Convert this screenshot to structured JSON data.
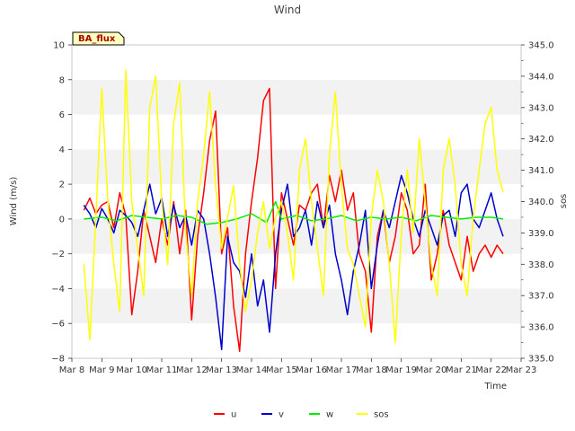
{
  "chart_data": {
    "type": "line",
    "title": "Wind",
    "xlabel": "Time",
    "ylabel": "Wind (m/s)",
    "y2label": "sos",
    "site_label": "BA_flux",
    "xlim": [
      8,
      23
    ],
    "ylim": [
      -8,
      10
    ],
    "y2lim": [
      335.0,
      345.0
    ],
    "x_ticks": [
      8,
      9,
      10,
      11,
      12,
      13,
      14,
      15,
      16,
      17,
      18,
      19,
      20,
      21,
      22,
      23
    ],
    "x_tick_labels": [
      "Mar 8",
      "Mar 9",
      "Mar 10",
      "Mar 11",
      "Mar 12",
      "Mar 13",
      "Mar 14",
      "Mar 15",
      "Mar 16",
      "Mar 17",
      "Mar 18",
      "Mar 19",
      "Mar 20",
      "Mar 21",
      "Mar 22",
      "Mar 23"
    ],
    "y_ticks": [
      -8,
      -6,
      -4,
      -2,
      0,
      2,
      4,
      6,
      8,
      10
    ],
    "y_tick_labels": [
      "−8",
      "−6",
      "−4",
      "−2",
      "0",
      "2",
      "4",
      "6",
      "8",
      "10"
    ],
    "y2_ticks": [
      335,
      336,
      337,
      338,
      339,
      340,
      341,
      342,
      343,
      344,
      345
    ],
    "y2_tick_labels": [
      "335.0",
      "336.0",
      "337.0",
      "338.0",
      "339.0",
      "340.0",
      "341.0",
      "342.0",
      "343.0",
      "344.0",
      "345.0"
    ],
    "legend": {
      "placement": "bottom-center",
      "entries": [
        "u",
        "v",
        "w",
        "sos"
      ]
    },
    "series": [
      {
        "name": "u",
        "axis": "left",
        "color": "#ff0000",
        "x": [
          8.4,
          8.6,
          8.8,
          9.0,
          9.2,
          9.4,
          9.6,
          9.8,
          10.0,
          10.2,
          10.4,
          10.6,
          10.8,
          11.0,
          11.2,
          11.4,
          11.6,
          11.8,
          12.0,
          12.2,
          12.4,
          12.6,
          12.8,
          13.0,
          13.2,
          13.4,
          13.6,
          13.8,
          14.0,
          14.2,
          14.4,
          14.6,
          14.8,
          15.0,
          15.2,
          15.4,
          15.6,
          15.8,
          16.0,
          16.2,
          16.4,
          16.6,
          16.8,
          17.0,
          17.2,
          17.4,
          17.6,
          17.8,
          18.0,
          18.2,
          18.4,
          18.6,
          18.8,
          19.0,
          19.2,
          19.4,
          19.6,
          19.8,
          20.0,
          20.2,
          20.4,
          20.6,
          20.8,
          21.0,
          21.2,
          21.4,
          21.6,
          21.8,
          22.0,
          22.2,
          22.4
        ],
        "values": [
          0.5,
          1.2,
          0.3,
          0.8,
          1.0,
          -0.5,
          1.5,
          0.2,
          -5.5,
          -3.0,
          0.5,
          -1.0,
          -2.5,
          0.0,
          -1.5,
          1.0,
          -2.0,
          0.5,
          -5.8,
          -1.0,
          1.5,
          4.5,
          6.2,
          -2.0,
          -0.5,
          -5.0,
          -7.6,
          -2.0,
          1.0,
          3.5,
          6.8,
          7.5,
          -4.0,
          1.5,
          0.0,
          -1.5,
          0.8,
          0.5,
          1.5,
          2.0,
          -0.5,
          2.5,
          1.0,
          2.8,
          0.5,
          1.5,
          -2.0,
          -3.0,
          -6.5,
          -1.0,
          0.5,
          -2.5,
          -1.0,
          1.5,
          0.5,
          -2.0,
          -1.5,
          2.0,
          -3.5,
          -2.0,
          0.5,
          -1.5,
          -2.5,
          -3.5,
          -1.0,
          -3.0,
          -2.0,
          -1.5,
          -2.2,
          -1.5,
          -2.0
        ]
      },
      {
        "name": "v",
        "axis": "left",
        "color": "#0000cc",
        "x": [
          8.4,
          8.6,
          8.8,
          9.0,
          9.2,
          9.4,
          9.6,
          9.8,
          10.0,
          10.2,
          10.4,
          10.6,
          10.8,
          11.0,
          11.2,
          11.4,
          11.6,
          11.8,
          12.0,
          12.2,
          12.4,
          12.6,
          12.8,
          13.0,
          13.2,
          13.4,
          13.6,
          13.8,
          14.0,
          14.2,
          14.4,
          14.6,
          14.8,
          15.0,
          15.2,
          15.4,
          15.6,
          15.8,
          16.0,
          16.2,
          16.4,
          16.6,
          16.8,
          17.0,
          17.2,
          17.4,
          17.6,
          17.8,
          18.0,
          18.2,
          18.4,
          18.6,
          18.8,
          19.0,
          19.2,
          19.4,
          19.6,
          19.8,
          20.0,
          20.2,
          20.4,
          20.6,
          20.8,
          21.0,
          21.2,
          21.4,
          21.6,
          21.8,
          22.0,
          22.2,
          22.4
        ],
        "values": [
          0.8,
          0.3,
          -0.5,
          0.6,
          0.0,
          -0.8,
          0.5,
          0.2,
          -0.2,
          -1.0,
          0.5,
          2.0,
          0.3,
          1.2,
          -1.0,
          0.8,
          -0.5,
          0.2,
          -1.5,
          0.5,
          0.0,
          -2.0,
          -4.5,
          -7.5,
          -1.0,
          -2.5,
          -3.0,
          -4.5,
          -2.0,
          -5.0,
          -3.5,
          -6.5,
          -2.0,
          0.5,
          2.0,
          -1.0,
          -0.5,
          0.5,
          -1.5,
          1.0,
          -0.5,
          0.8,
          -2.0,
          -3.5,
          -5.5,
          -3.0,
          -1.5,
          0.5,
          -4.0,
          -1.5,
          0.5,
          -0.5,
          1.0,
          2.5,
          1.5,
          0.0,
          -1.0,
          0.5,
          -0.5,
          -1.5,
          0.2,
          0.5,
          -1.0,
          1.5,
          2.0,
          0.0,
          -0.5,
          0.5,
          1.5,
          0.0,
          -1.0
        ]
      },
      {
        "name": "w",
        "axis": "left",
        "color": "#00ee00",
        "x": [
          8.4,
          9.0,
          9.5,
          10.0,
          10.5,
          11.0,
          11.5,
          12.0,
          12.5,
          13.0,
          13.5,
          14.0,
          14.5,
          14.8,
          15.0,
          15.5,
          16.0,
          16.5,
          17.0,
          17.5,
          18.0,
          18.5,
          19.0,
          19.5,
          20.0,
          20.5,
          21.0,
          21.5,
          22.0,
          22.4
        ],
        "values": [
          0.0,
          0.1,
          -0.1,
          0.2,
          0.1,
          0.0,
          0.2,
          0.1,
          -0.3,
          -0.2,
          0.0,
          0.3,
          -0.2,
          1.0,
          0.0,
          0.2,
          -0.1,
          0.0,
          0.2,
          -0.1,
          0.1,
          0.0,
          0.1,
          -0.1,
          0.2,
          0.1,
          0.0,
          0.1,
          0.1,
          0.0
        ]
      },
      {
        "name": "sos",
        "axis": "right",
        "color": "#ffff00",
        "x": [
          8.4,
          8.6,
          8.8,
          9.0,
          9.2,
          9.4,
          9.6,
          9.8,
          10.0,
          10.2,
          10.4,
          10.6,
          10.8,
          11.0,
          11.2,
          11.4,
          11.6,
          11.8,
          12.0,
          12.2,
          12.4,
          12.6,
          12.8,
          13.0,
          13.2,
          13.4,
          13.6,
          13.8,
          14.0,
          14.2,
          14.4,
          14.6,
          14.8,
          15.0,
          15.2,
          15.4,
          15.6,
          15.8,
          16.0,
          16.2,
          16.4,
          16.6,
          16.8,
          17.0,
          17.2,
          17.4,
          17.6,
          17.8,
          18.0,
          18.2,
          18.4,
          18.6,
          18.8,
          19.0,
          19.2,
          19.4,
          19.6,
          19.8,
          20.0,
          20.2,
          20.4,
          20.6,
          20.8,
          21.0,
          21.2,
          21.4,
          21.6,
          21.8,
          22.0,
          22.2,
          22.4
        ],
        "values": [
          338.0,
          335.6,
          339.5,
          343.6,
          340.0,
          338.0,
          336.5,
          344.2,
          340.0,
          338.5,
          337.0,
          343.0,
          344.0,
          340.0,
          338.0,
          342.5,
          343.8,
          339.0,
          337.0,
          340.0,
          341.5,
          343.5,
          340.5,
          338.5,
          339.5,
          340.5,
          338.0,
          336.5,
          337.5,
          339.0,
          340.0,
          338.5,
          339.5,
          340.0,
          339.0,
          337.5,
          341.0,
          342.0,
          340.0,
          338.5,
          337.0,
          341.5,
          343.5,
          340.5,
          338.5,
          338.0,
          337.0,
          336.0,
          339.5,
          341.0,
          340.0,
          338.0,
          335.5,
          339.0,
          341.0,
          339.0,
          342.0,
          340.0,
          338.0,
          337.0,
          341.0,
          342.0,
          340.5,
          338.0,
          337.0,
          339.5,
          341.0,
          342.5,
          343.0,
          341.0,
          340.3
        ]
      }
    ]
  }
}
